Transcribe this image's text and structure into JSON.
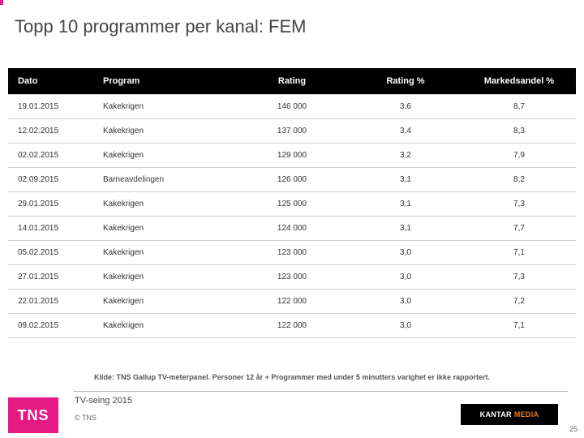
{
  "title": "Topp 10 programmer per kanal: FEM",
  "columns": [
    "Dato",
    "Program",
    "Rating",
    "Rating %",
    "Markedsandel %"
  ],
  "rows": [
    [
      "19.01.2015",
      "Kakekrigen",
      "146 000",
      "3,6",
      "8,7"
    ],
    [
      "12.02.2015",
      "Kakekrigen",
      "137 000",
      "3,4",
      "8,3"
    ],
    [
      "02.02.2015",
      "Kakekrigen",
      "129 000",
      "3,2",
      "7,9"
    ],
    [
      "02.09.2015",
      "Barneavdelingen",
      "126 000",
      "3,1",
      "8,2"
    ],
    [
      "29.01.2015",
      "Kakekrigen",
      "125 000",
      "3,1",
      "7,3"
    ],
    [
      "14.01.2015",
      "Kakekrigen",
      "124 000",
      "3,1",
      "7,7"
    ],
    [
      "05.02.2015",
      "Kakekrigen",
      "123 000",
      "3,0",
      "7,1"
    ],
    [
      "27.01.2015",
      "Kakekrigen",
      "123 000",
      "3,0",
      "7,3"
    ],
    [
      "22.01.2015",
      "Kakekrigen",
      "122 000",
      "3,0",
      "7,2"
    ],
    [
      "09.02.2015",
      "Kakekrigen",
      "122 000",
      "3,0",
      "7,1"
    ]
  ],
  "col_widths": [
    "15%",
    "25%",
    "20%",
    "20%",
    "20%"
  ],
  "source_note": "Kilde: TNS Gallup TV-meterpanel. Personer 12 år + Programmer med under 5 minutters varighet er ikke rapportert.",
  "footer_title": "TV-seing 2015",
  "copyright": "© TNS",
  "page_number": "25",
  "logos": {
    "tns": "TNS",
    "kantar_a": "KANTAR",
    "kantar_b": "MEDIA"
  },
  "colors": {
    "header_bg": "#000000",
    "header_fg": "#ffffff",
    "row_bg": "#ffffff",
    "border": "#d0d0d0",
    "accent": "#e51a84",
    "kantar_orange": "#e87d1e"
  }
}
